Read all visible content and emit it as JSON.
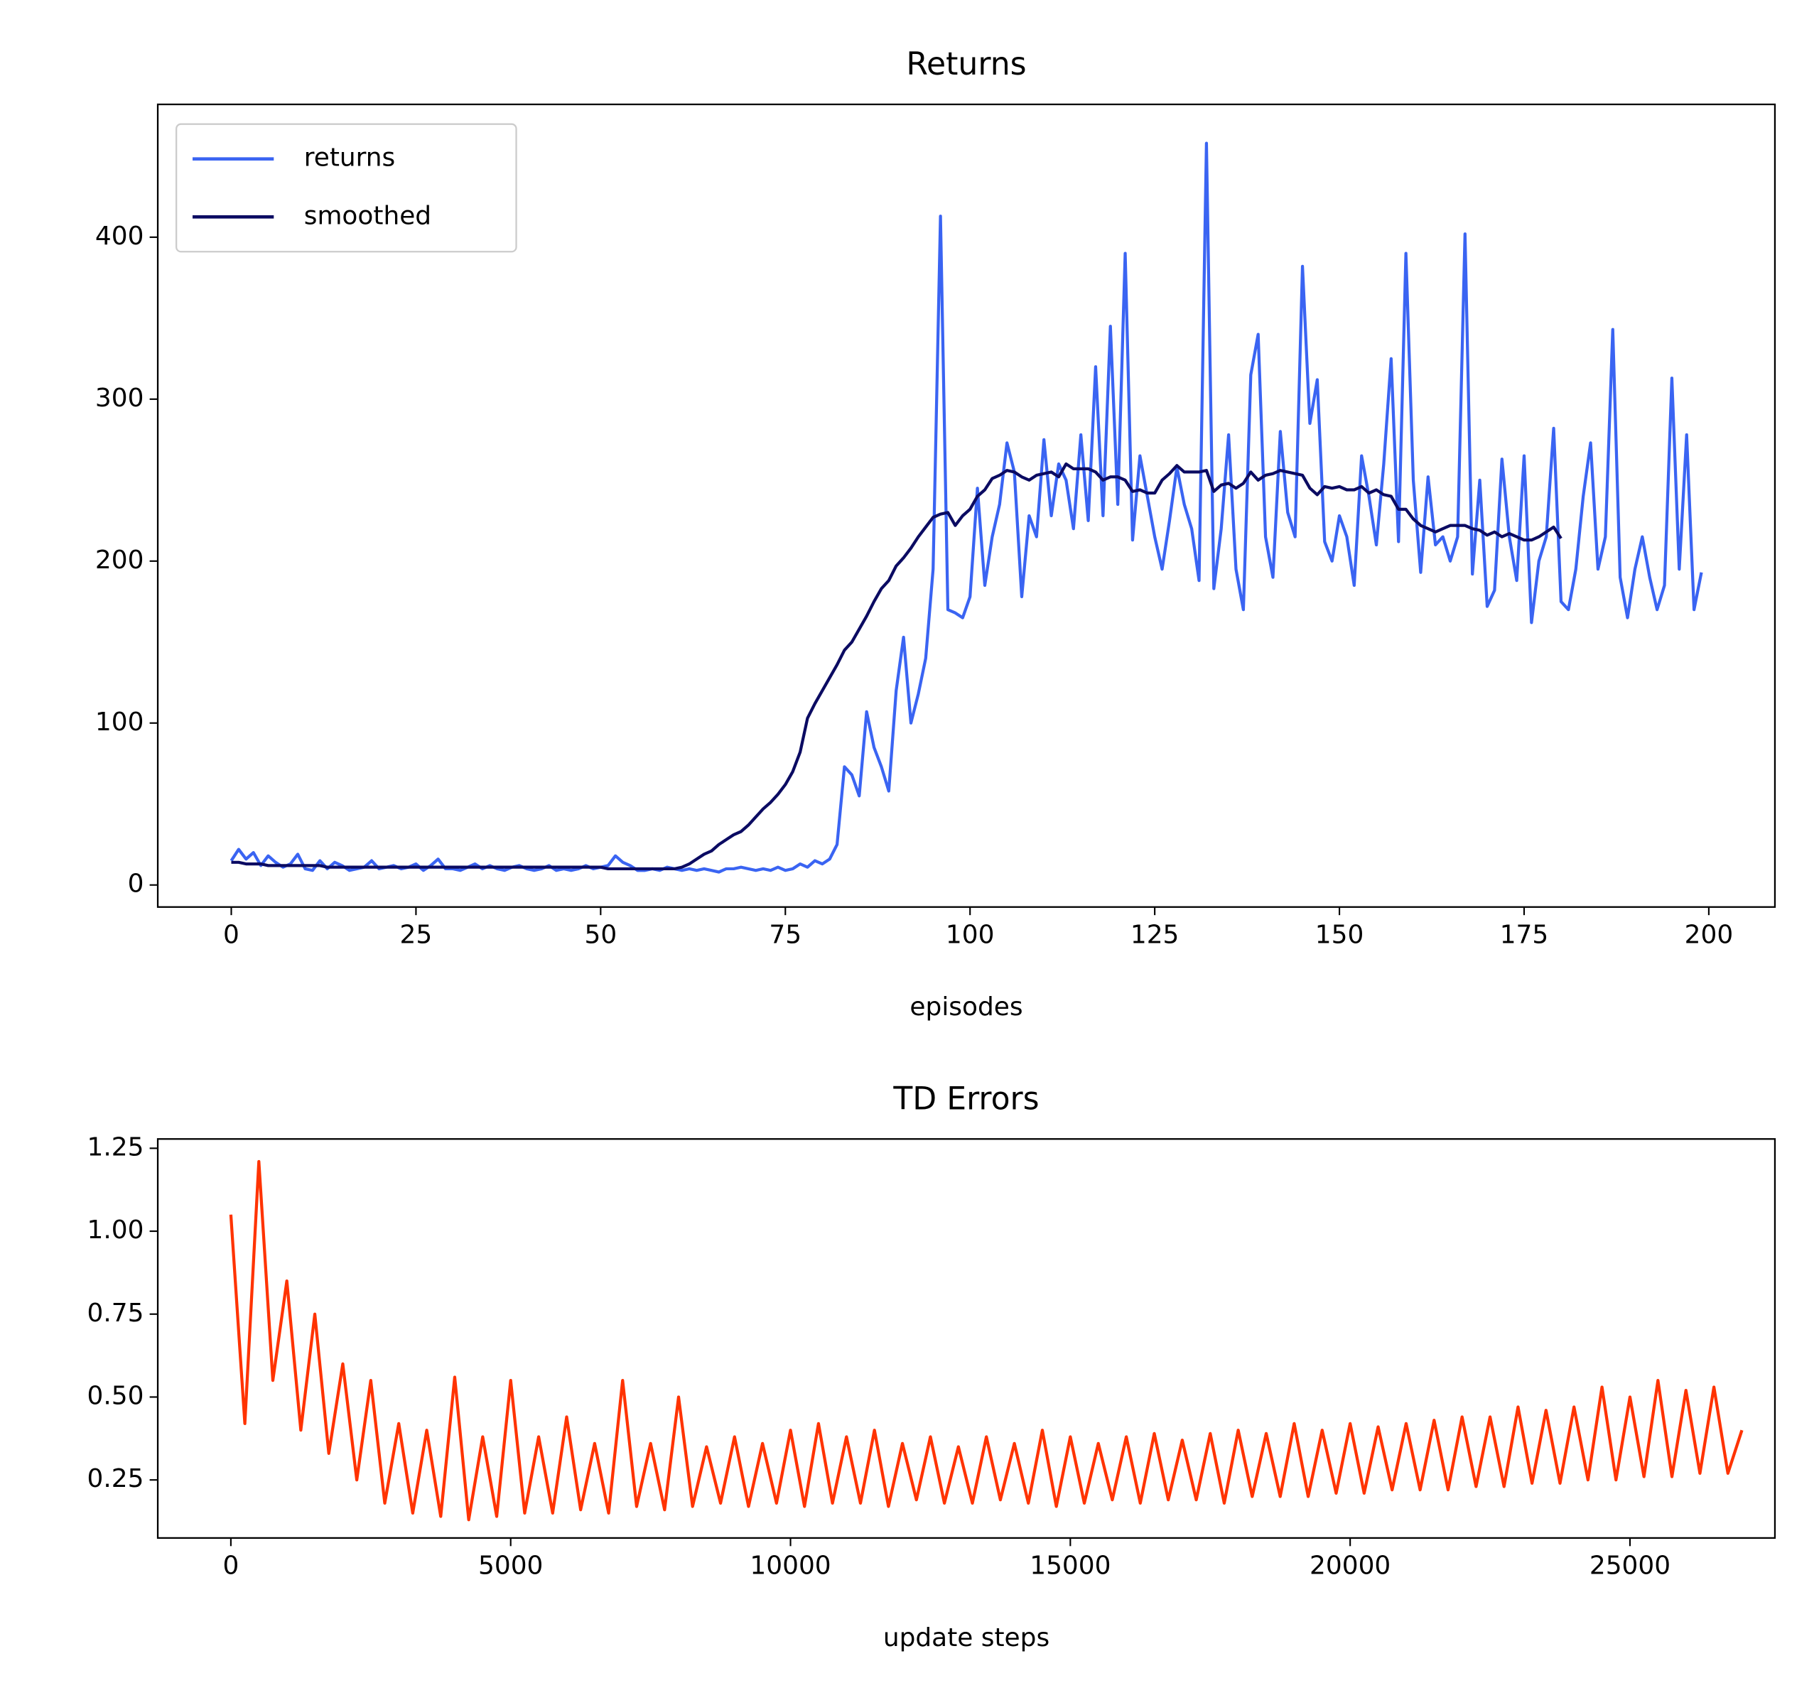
{
  "chart_data": [
    {
      "type": "line",
      "title": "Returns",
      "xlabel": "episodes",
      "legend": "upper left",
      "x": [
        0,
        1,
        2,
        3,
        4,
        5,
        6,
        7,
        8,
        9,
        10,
        11,
        12,
        13,
        14,
        15,
        16,
        17,
        18,
        19,
        20,
        21,
        22,
        23,
        24,
        25,
        26,
        27,
        28,
        29,
        30,
        31,
        32,
        33,
        34,
        35,
        36,
        37,
        38,
        39,
        40,
        41,
        42,
        43,
        44,
        45,
        46,
        47,
        48,
        49,
        50,
        51,
        52,
        53,
        54,
        55,
        56,
        57,
        58,
        59,
        60,
        61,
        62,
        63,
        64,
        65,
        66,
        67,
        68,
        69,
        70,
        71,
        72,
        73,
        74,
        75,
        76,
        77,
        78,
        79,
        80,
        81,
        82,
        83,
        84,
        85,
        86,
        87,
        88,
        89,
        90,
        91,
        92,
        93,
        94,
        95,
        96,
        97,
        98,
        99,
        100,
        101,
        102,
        103,
        104,
        105,
        106,
        107,
        108,
        109,
        110,
        111,
        112,
        113,
        114,
        115,
        116,
        117,
        118,
        119,
        120,
        121,
        122,
        123,
        124,
        125,
        126,
        127,
        128,
        129,
        130,
        131,
        132,
        133,
        134,
        135,
        136,
        137,
        138,
        139,
        140,
        141,
        142,
        143,
        144,
        145,
        146,
        147,
        148,
        149,
        150,
        151,
        152,
        153,
        154,
        155,
        156,
        157,
        158,
        159,
        160,
        161,
        162,
        163,
        164,
        165,
        166,
        167,
        168,
        169,
        170,
        171,
        172,
        173,
        174,
        175,
        176,
        177,
        178,
        179,
        180,
        181,
        182,
        183,
        184,
        185,
        186,
        187,
        188,
        189,
        190,
        191,
        192,
        193,
        194,
        195,
        196,
        197,
        198,
        199
      ],
      "series": [
        {
          "name": "returns",
          "color": "#3a64f2",
          "values": [
            15,
            22,
            16,
            20,
            12,
            18,
            14,
            11,
            13,
            19,
            10,
            9,
            15,
            10,
            14,
            12,
            9,
            10,
            11,
            15,
            10,
            11,
            12,
            10,
            11,
            13,
            9,
            12,
            16,
            10,
            10,
            9,
            11,
            13,
            10,
            12,
            10,
            9,
            11,
            12,
            10,
            9,
            10,
            12,
            9,
            10,
            9,
            10,
            12,
            10,
            11,
            12,
            18,
            14,
            12,
            9,
            9,
            10,
            9,
            11,
            10,
            9,
            10,
            9,
            10,
            9,
            8,
            10,
            10,
            11,
            10,
            9,
            10,
            9,
            11,
            9,
            10,
            13,
            11,
            15,
            13,
            16,
            25,
            73,
            68,
            55,
            107,
            85,
            73,
            58,
            120,
            153,
            100,
            118,
            140,
            195,
            413,
            170,
            168,
            165,
            178,
            245,
            185,
            215,
            235,
            273,
            255,
            178,
            228,
            215,
            275,
            228,
            260,
            250,
            220,
            278,
            225,
            320,
            228,
            345,
            235,
            390,
            213,
            265,
            240,
            215,
            195,
            225,
            258,
            235,
            220,
            188,
            458,
            183,
            220,
            278,
            195,
            170,
            315,
            340,
            215,
            190,
            280,
            230,
            215,
            382,
            285,
            312,
            212,
            200,
            228,
            215,
            185,
            265,
            240,
            210,
            260,
            325,
            212,
            390,
            250,
            193,
            252,
            210,
            215,
            200,
            215,
            402,
            192,
            250,
            172,
            182,
            263,
            215,
            188,
            265,
            162,
            200,
            215,
            282,
            175,
            170,
            195,
            240,
            273,
            195,
            215,
            343,
            190,
            165,
            195,
            215,
            190,
            170,
            185,
            313,
            195,
            278,
            170,
            193
          ]
        },
        {
          "name": "smoothed",
          "color": "#0b0b62",
          "values": [
            14,
            14,
            13,
            13,
            13,
            12,
            12,
            12,
            12,
            12,
            12,
            12,
            12,
            11,
            11,
            11,
            11,
            11,
            11,
            11,
            11,
            11,
            11,
            11,
            11,
            11,
            11,
            11,
            11,
            11,
            11,
            11,
            11,
            11,
            11,
            11,
            11,
            11,
            11,
            11,
            11,
            11,
            11,
            11,
            11,
            11,
            11,
            11,
            11,
            11,
            11,
            10,
            10,
            10,
            10,
            10,
            10,
            10,
            10,
            10,
            10,
            11,
            13,
            16,
            19,
            21,
            25,
            28,
            31,
            33,
            37,
            42,
            47,
            51,
            56,
            62,
            70,
            82,
            103,
            112,
            120,
            128,
            136,
            145,
            150,
            158,
            166,
            175,
            183,
            188,
            197,
            202,
            208,
            215,
            221,
            227,
            229,
            230,
            222,
            228,
            232,
            240,
            244,
            251,
            253,
            256,
            255,
            252,
            250,
            253,
            254,
            255,
            252,
            260,
            257,
            257,
            257,
            255,
            250,
            252,
            252,
            250,
            243,
            244,
            242,
            242,
            250,
            254,
            259,
            255,
            255,
            255,
            256,
            243,
            247,
            248,
            245,
            248,
            255,
            250,
            253,
            254,
            256,
            255,
            254,
            253,
            245,
            241,
            246,
            245,
            246,
            244,
            244,
            246,
            242,
            244,
            241,
            240,
            232,
            232,
            226,
            222,
            220,
            218,
            220,
            222,
            222,
            222,
            220,
            219,
            216,
            218,
            215,
            217,
            215,
            213,
            213,
            215,
            218,
            221,
            214,
            null,
            null,
            null,
            null,
            null,
            null,
            null,
            null,
            null,
            null,
            null,
            null,
            null,
            null,
            null,
            null,
            null,
            null,
            null
          ]
        }
      ],
      "xlim": [
        -9.95,
        208.95
      ],
      "xticks": [
        0,
        25,
        50,
        75,
        100,
        125,
        150,
        175,
        200
      ],
      "ylim": [
        -13.6,
        482
      ],
      "yticks": [
        0,
        100,
        200,
        300,
        400
      ]
    },
    {
      "type": "line",
      "title": "TD Errors",
      "xlabel": "update steps",
      "x": [
        0,
        250,
        500,
        750,
        1000,
        1250,
        1500,
        1750,
        2000,
        2250,
        2500,
        2750,
        3000,
        3250,
        3500,
        3750,
        4000,
        4250,
        4500,
        4750,
        5000,
        5250,
        5500,
        5750,
        6000,
        6250,
        6500,
        6750,
        7000,
        7250,
        7500,
        7750,
        8000,
        8250,
        8500,
        8750,
        9000,
        9250,
        9500,
        9750,
        10000,
        10250,
        10500,
        10750,
        11000,
        11250,
        11500,
        11750,
        12000,
        12250,
        12500,
        12750,
        13000,
        13250,
        13500,
        13750,
        14000,
        14250,
        14500,
        14750,
        15000,
        15250,
        15500,
        15750,
        16000,
        16250,
        16500,
        16750,
        17000,
        17250,
        17500,
        17750,
        18000,
        18250,
        18500,
        18750,
        19000,
        19250,
        19500,
        19750,
        20000,
        20250,
        20500,
        20750,
        21000,
        21250,
        21500,
        21750,
        22000,
        22250,
        22500,
        22750,
        23000,
        23250,
        23500,
        23750,
        24000,
        24250,
        24500,
        24750,
        25000,
        25250,
        25500,
        25750,
        26000,
        26250,
        26500,
        26750,
        27000
      ],
      "series": [
        {
          "color": "#ff3300",
          "values": [
            1.05,
            0.42,
            1.21,
            0.55,
            0.85,
            0.4,
            0.75,
            0.33,
            0.6,
            0.25,
            0.55,
            0.18,
            0.42,
            0.15,
            0.4,
            0.14,
            0.56,
            0.13,
            0.38,
            0.14,
            0.55,
            0.15,
            0.38,
            0.15,
            0.44,
            0.16,
            0.36,
            0.15,
            0.55,
            0.17,
            0.36,
            0.16,
            0.5,
            0.17,
            0.35,
            0.18,
            0.38,
            0.17,
            0.36,
            0.18,
            0.4,
            0.17,
            0.42,
            0.18,
            0.38,
            0.18,
            0.4,
            0.17,
            0.36,
            0.19,
            0.38,
            0.18,
            0.35,
            0.18,
            0.38,
            0.19,
            0.36,
            0.18,
            0.4,
            0.17,
            0.38,
            0.18,
            0.36,
            0.19,
            0.38,
            0.18,
            0.39,
            0.19,
            0.37,
            0.19,
            0.39,
            0.18,
            0.4,
            0.2,
            0.39,
            0.2,
            0.42,
            0.2,
            0.4,
            0.21,
            0.42,
            0.21,
            0.41,
            0.22,
            0.42,
            0.22,
            0.43,
            0.22,
            0.44,
            0.23,
            0.44,
            0.23,
            0.47,
            0.24,
            0.46,
            0.24,
            0.47,
            0.25,
            0.53,
            0.25,
            0.5,
            0.26,
            0.55,
            0.26,
            0.52,
            0.27,
            0.53,
            0.27,
            0.4
          ]
        }
      ],
      "xlim": [
        -1306,
        27590
      ],
      "xticks": [
        0,
        5000,
        10000,
        15000,
        20000,
        25000
      ],
      "ylim": [
        0.075,
        1.278
      ],
      "yticks": [
        0.25,
        {
          "value": 0.5,
          "label": "0.50"
        },
        {
          "value": 0.75,
          "label": "0.75"
        },
        {
          "value": 1.0,
          "label": "1.00"
        },
        1.25
      ]
    }
  ]
}
